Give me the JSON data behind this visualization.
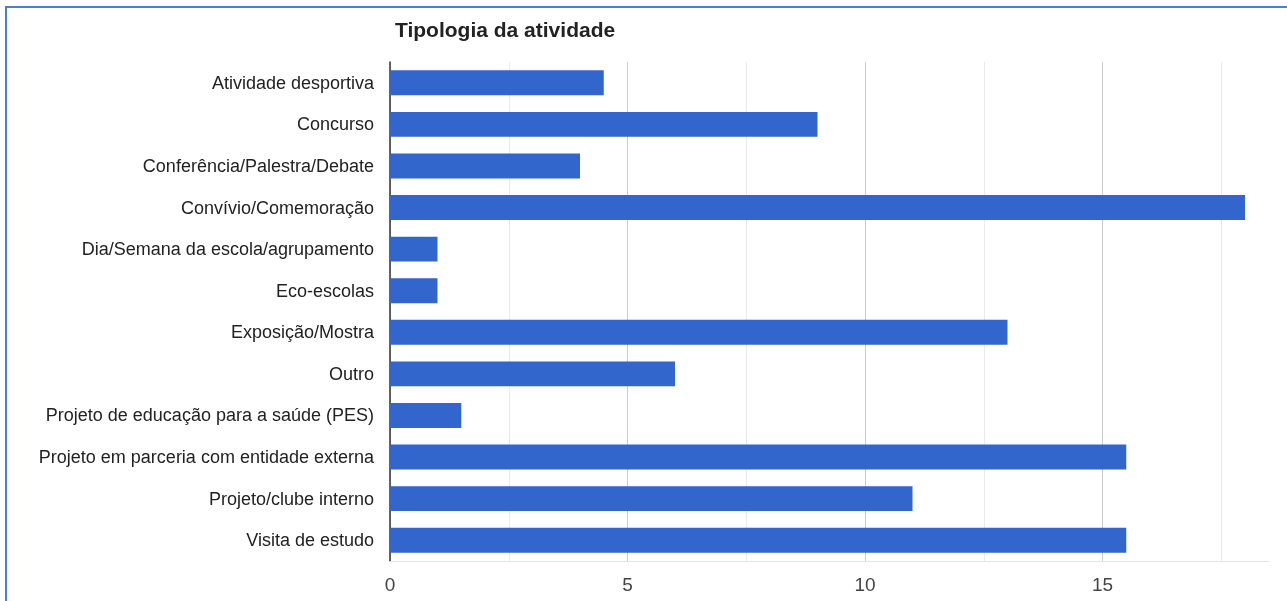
{
  "chart_data": {
    "type": "bar",
    "orientation": "horizontal",
    "title": "Tipologia da atividade",
    "categories": [
      "Atividade desportiva",
      "Concurso",
      "Conferência/Palestra/Debate",
      "Convívio/Comemoração",
      "Dia/Semana da escola/agrupamento",
      "Eco-escolas",
      "Exposição/Mostra",
      "Outro",
      "Projeto de educação para a saúde (PES)",
      "Projeto em parceria com entidade externa",
      "Projeto/clube interno",
      "Visita de estudo"
    ],
    "values": [
      4.5,
      9,
      4,
      18,
      1,
      1,
      13,
      6,
      1.5,
      15.5,
      11,
      15.5
    ],
    "color": "#3366cc",
    "xlim": [
      0,
      18.5
    ],
    "xticks": [
      0,
      {
        "value": 2.5,
        "label": null
      },
      5,
      {
        "value": 7.5,
        "label": null
      },
      10,
      {
        "value": 12.5,
        "label": null
      },
      15,
      {
        "value": 17.5,
        "label": null
      }
    ],
    "grid": "x"
  }
}
